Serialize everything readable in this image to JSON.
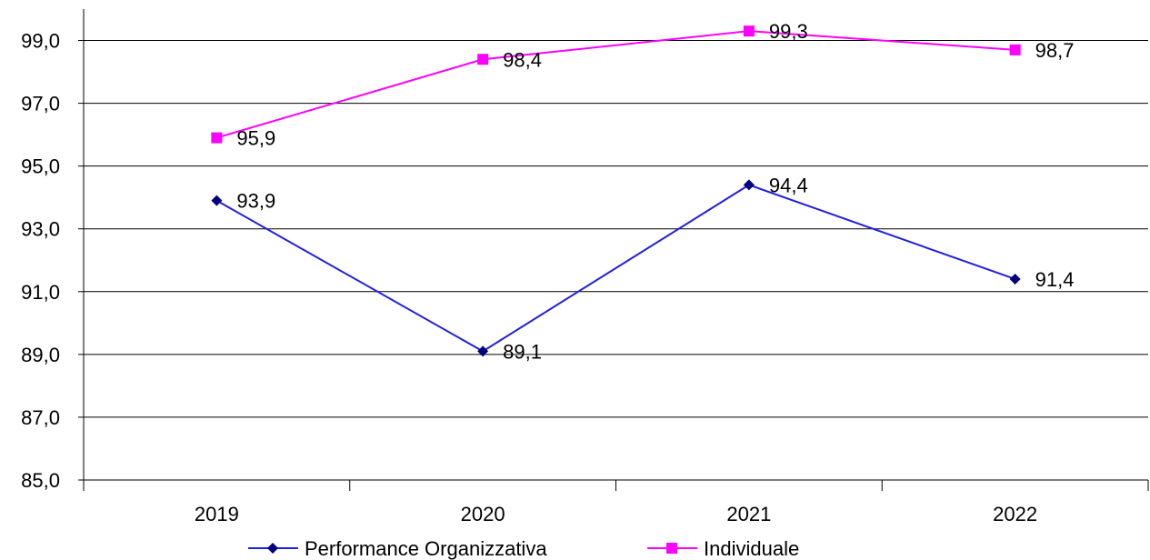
{
  "chart_data": {
    "type": "line",
    "categories": [
      "2019",
      "2020",
      "2021",
      "2022"
    ],
    "series": [
      {
        "name": "Performance Organizzativa",
        "values": [
          93.9,
          89.1,
          94.4,
          91.4
        ],
        "labels": [
          "93,9",
          "89,1",
          "94,4",
          "91,4"
        ],
        "color": "#2020e0",
        "marker": "diamond",
        "marker_color": "#000080"
      },
      {
        "name": "Individuale",
        "values": [
          95.9,
          98.4,
          99.3,
          98.7
        ],
        "labels": [
          "95,9",
          "98,4",
          "99,3",
          "98,7"
        ],
        "color": "#ff00ff",
        "marker": "square",
        "marker_color": "#ff00ff"
      }
    ],
    "y_ticks": [
      85.0,
      87.0,
      89.0,
      91.0,
      93.0,
      95.0,
      97.0,
      99.0
    ],
    "y_tick_labels": [
      "85,0",
      "87,0",
      "89,0",
      "91,0",
      "93,0",
      "95,0",
      "97,0",
      "99,0"
    ],
    "ylim": [
      85,
      100
    ],
    "grid": true,
    "legend_position": "bottom"
  }
}
